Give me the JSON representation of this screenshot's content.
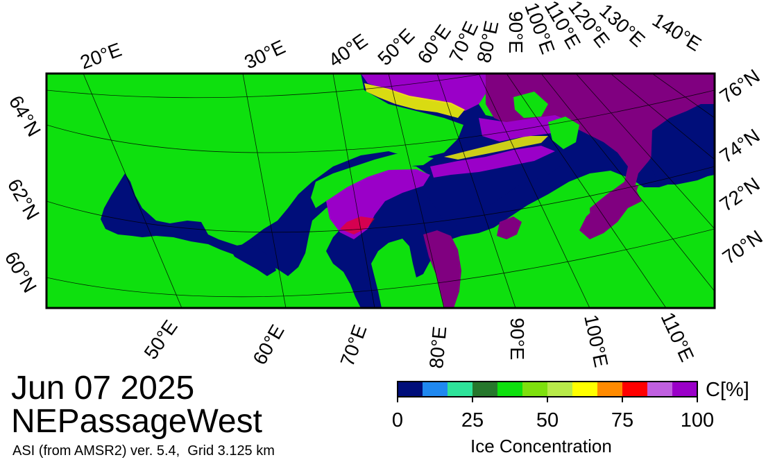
{
  "map": {
    "date": "Jun 07 2025",
    "region": "NEPassageWest",
    "product": "ASI (from AMSR2) ver. 5.4,  Grid 3.125 km"
  },
  "graticule": {
    "top_lon_labels": [
      "20°E",
      "30°E",
      "40°E",
      "50°E",
      "60°E",
      "70°E",
      "80°E",
      "90°E",
      "100°E",
      "110°E",
      "120°E",
      "130°E",
      "140°E"
    ],
    "bottom_lon_labels": [
      "50°E",
      "60°E",
      "70°E",
      "80°E",
      "90°E",
      "100°E",
      "110°E"
    ],
    "left_lat_labels": [
      "64°N",
      "62°N",
      "60°N"
    ],
    "right_lat_labels": [
      "76°N",
      "74°N",
      "72°N",
      "70°N"
    ]
  },
  "colorbar": {
    "title": "Ice Concentration",
    "unit": "C[%]",
    "tick_labels": [
      "0",
      "25",
      "50",
      "75",
      "100"
    ],
    "range": [
      0,
      100
    ],
    "colors": [
      "#000e7a",
      "#1f88f0",
      "#2ee39a",
      "#26772c",
      "#0ee00e",
      "#7ee00e",
      "#b8ea4a",
      "#ffff00",
      "#ff8a00",
      "#ff0000",
      "#c060e0",
      "#9a00c8"
    ]
  },
  "legend_colors": {
    "ocean": "#000e7a",
    "land": "#0ee00e",
    "high_ice": "#800080",
    "missing": "#909090"
  }
}
